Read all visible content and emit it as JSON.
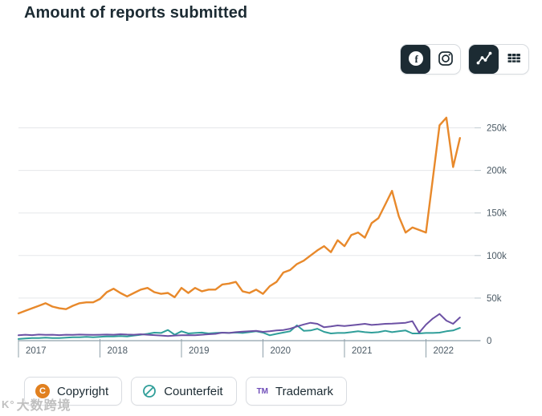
{
  "header": {
    "title": "Amount of reports submitted"
  },
  "toolbar": {
    "platform_buttons": [
      {
        "icon": "facebook-icon",
        "selected": true
      },
      {
        "icon": "instagram-icon",
        "selected": false
      }
    ],
    "view_buttons": [
      {
        "icon": "line-chart-icon",
        "selected": true
      },
      {
        "icon": "table-icon",
        "selected": false
      }
    ]
  },
  "chart_data": {
    "type": "line",
    "title": "Amount of reports submitted",
    "frequency": "monthly",
    "x_start": "2017-01",
    "x_end": "2022-06",
    "x_year_labels": [
      "2017",
      "2018",
      "2019",
      "2020",
      "2021",
      "2022"
    ],
    "ylim": [
      0,
      250000
    ],
    "yticks": [
      {
        "value": 0,
        "label": "0"
      },
      {
        "value": 50000,
        "label": "50k"
      },
      {
        "value": 100000,
        "label": "100k"
      },
      {
        "value": 150000,
        "label": "150k"
      },
      {
        "value": 200000,
        "label": "200k"
      },
      {
        "value": 250000,
        "label": "250k"
      }
    ],
    "grid": true,
    "legend_position": "bottom",
    "series": [
      {
        "name": "Copyright",
        "color": "#e8892b",
        "values": [
          32000,
          35000,
          38000,
          41000,
          44000,
          40000,
          38000,
          37000,
          41000,
          44000,
          45000,
          45000,
          49000,
          57000,
          61000,
          56000,
          52000,
          56000,
          60000,
          62000,
          57000,
          55000,
          56000,
          51000,
          62000,
          56000,
          62000,
          58000,
          60000,
          60000,
          66000,
          67000,
          69000,
          58000,
          56000,
          60000,
          55000,
          64000,
          69000,
          80000,
          83000,
          90000,
          94000,
          100000,
          106000,
          111000,
          104000,
          118000,
          111000,
          124000,
          127000,
          121000,
          138000,
          144000,
          160000,
          176000,
          146000,
          127000,
          133000,
          130000,
          127000,
          190000,
          253000,
          262000,
          204000,
          238000
        ]
      },
      {
        "name": "Counterfeit",
        "color": "#2f9e99",
        "values": [
          2000,
          2500,
          3000,
          3000,
          3500,
          3000,
          3000,
          3500,
          4000,
          4000,
          4500,
          4000,
          4500,
          5000,
          5000,
          5500,
          5000,
          6000,
          7000,
          8000,
          9400,
          9000,
          12500,
          7000,
          11000,
          8500,
          9000,
          9500,
          8500,
          9000,
          9400,
          9000,
          9500,
          9000,
          10000,
          11000,
          9400,
          6300,
          8000,
          9500,
          11000,
          18000,
          11600,
          12000,
          14000,
          10400,
          8500,
          9000,
          9000,
          10000,
          11000,
          10000,
          9400,
          10000,
          11600,
          10000,
          11000,
          12000,
          8500,
          8500,
          9000,
          9000,
          9400,
          11000,
          12000,
          15000
        ]
      },
      {
        "name": "Trademark",
        "color": "#6c51a4",
        "values": [
          6300,
          7000,
          6500,
          7200,
          6800,
          7000,
          6500,
          7000,
          6800,
          7200,
          7000,
          6800,
          7000,
          7200,
          7000,
          7500,
          7200,
          7000,
          7500,
          7000,
          6500,
          6000,
          5400,
          6000,
          6300,
          6500,
          6300,
          7000,
          7500,
          8000,
          9400,
          9000,
          10000,
          10500,
          11000,
          11600,
          10400,
          11000,
          12000,
          12500,
          14000,
          16700,
          19000,
          21000,
          19800,
          15700,
          16700,
          17900,
          17200,
          18000,
          18800,
          19800,
          18500,
          19000,
          19800,
          20000,
          20400,
          21000,
          22900,
          9400,
          18800,
          26000,
          31400,
          23500,
          19800,
          27300
        ]
      }
    ]
  },
  "legend": {
    "items": [
      {
        "label": "Copyright",
        "icon": "copyright-icon",
        "icon_glyph": "C",
        "color": "#e1801f"
      },
      {
        "label": "Counterfeit",
        "icon": "counterfeit-icon",
        "color": "#2f9e99"
      },
      {
        "label": "Trademark",
        "icon": "trademark-icon",
        "icon_glyph": "TM",
        "color": "#6f4db8"
      }
    ]
  },
  "watermark": {
    "text": "大数跨境"
  },
  "colors": {
    "title": "#1c2b33",
    "axis_label": "#4b5a65",
    "gridline": "#e5e7ea",
    "axis_line": "#8fa0aa",
    "selected_button_bg": "#1c2b33"
  }
}
